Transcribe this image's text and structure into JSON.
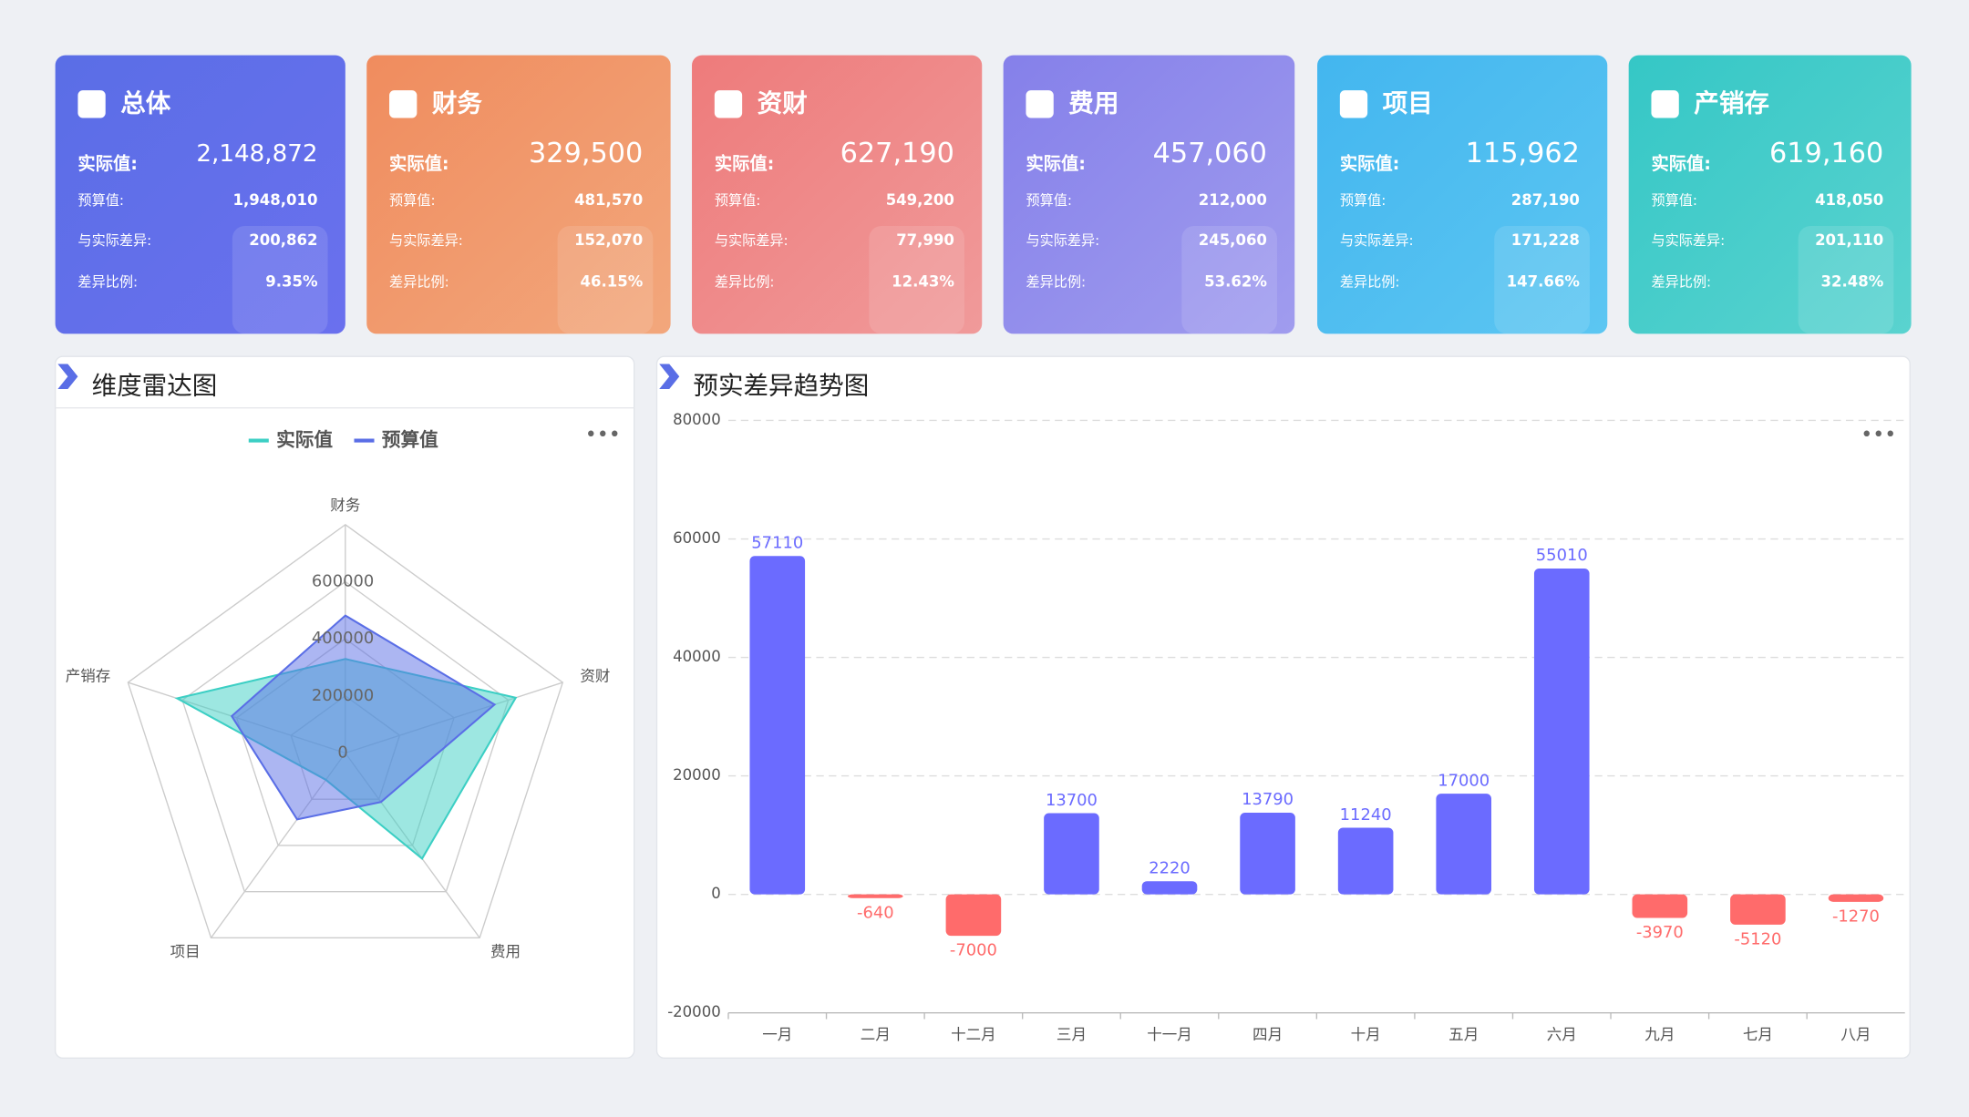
{
  "cards": [
    {
      "title": "总体",
      "actual_label": "实际值:",
      "actual": "2,148,872",
      "budget_label": "预算值:",
      "budget": "1,948,010",
      "diff_label": "与实际差异:",
      "diff": "200,862",
      "ratio_label": "差异比例:",
      "ratio": "9.35%"
    },
    {
      "title": "财务",
      "actual_label": "实际值:",
      "actual": "329,500",
      "budget_label": "预算值:",
      "budget": "481,570",
      "diff_label": "与实际差异:",
      "diff": "152,070",
      "ratio_label": "差异比例:",
      "ratio": "46.15%"
    },
    {
      "title": "资财",
      "actual_label": "实际值:",
      "actual": "627,190",
      "budget_label": "预算值:",
      "budget": "549,200",
      "diff_label": "与实际差异:",
      "diff": "77,990",
      "ratio_label": "差异比例:",
      "ratio": "12.43%"
    },
    {
      "title": "费用",
      "actual_label": "实际值:",
      "actual": "457,060",
      "budget_label": "预算值:",
      "budget": "212,000",
      "diff_label": "与实际差异:",
      "diff": "245,060",
      "ratio_label": "差异比例:",
      "ratio": "53.62%"
    },
    {
      "title": "项目",
      "actual_label": "实际值:",
      "actual": "115,962",
      "budget_label": "预算值:",
      "budget": "287,190",
      "diff_label": "与实际差异:",
      "diff": "171,228",
      "ratio_label": "差异比例:",
      "ratio": "147.66%"
    },
    {
      "title": "产销存",
      "actual_label": "实际值:",
      "actual": "619,160",
      "budget_label": "预算值:",
      "budget": "418,050",
      "diff_label": "与实际差异:",
      "diff": "201,110",
      "ratio_label": "差异比例:",
      "ratio": "32.48%"
    }
  ],
  "chart_data": [
    {
      "type": "radar",
      "title": "维度雷达图",
      "categories": [
        "财务",
        "资财",
        "费用",
        "项目",
        "产销存"
      ],
      "series": [
        {
          "name": "实际值",
          "color": "#3ccfc4",
          "values": [
            329500,
            627190,
            457060,
            115962,
            619160
          ]
        },
        {
          "name": "预算值",
          "color": "#5a6ee6",
          "values": [
            481570,
            549200,
            212000,
            287190,
            418050
          ]
        }
      ],
      "ylim": [
        0,
        800000
      ],
      "yticks": [
        0,
        200000,
        400000,
        600000
      ]
    },
    {
      "type": "bar",
      "title": "预实差异趋势图",
      "categories": [
        "一月",
        "二月",
        "十二月",
        "三月",
        "十一月",
        "四月",
        "十月",
        "五月",
        "六月",
        "九月",
        "七月",
        "八月"
      ],
      "values": [
        57110,
        -640,
        -7000,
        13700,
        2220,
        13790,
        11240,
        17000,
        55010,
        -3970,
        -5120,
        -1270
      ],
      "positive_color": "#6b6bff",
      "negative_color": "#ff6b6b",
      "ylim": [
        -20000,
        80000
      ],
      "yticks": [
        -20000,
        0,
        20000,
        40000,
        60000,
        80000
      ],
      "grid": true
    }
  ]
}
